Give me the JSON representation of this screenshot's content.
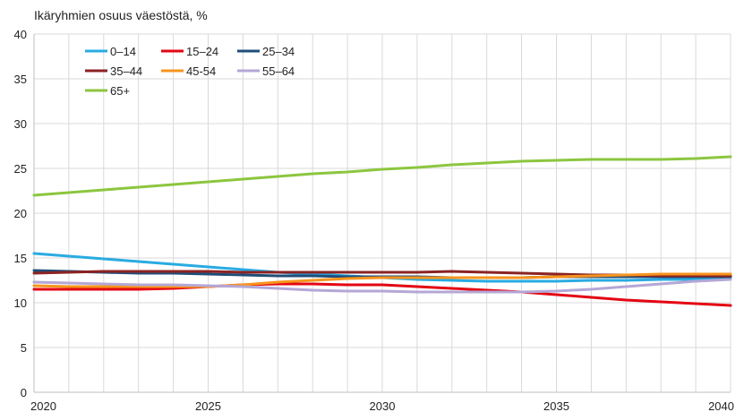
{
  "chart_data": {
    "type": "line",
    "title": "Ikäryhmien osuus väestöstä, %",
    "xlabel": "",
    "ylabel": "",
    "xlim": [
      2020,
      2040
    ],
    "ylim": [
      0,
      40
    ],
    "x_ticks": [
      "2020",
      "2025",
      "2030",
      "2035",
      "2040"
    ],
    "y_ticks": [
      "0",
      "5",
      "10",
      "15",
      "20",
      "25",
      "30",
      "35",
      "40"
    ],
    "grid": true,
    "legend_position": "top-left",
    "x": [
      2020,
      2021,
      2022,
      2023,
      2024,
      2025,
      2026,
      2027,
      2028,
      2029,
      2030,
      2031,
      2032,
      2033,
      2034,
      2035,
      2036,
      2037,
      2038,
      2039,
      2040
    ],
    "series": [
      {
        "name": "0–14",
        "color": "#29abe2",
        "values": [
          15.5,
          15.2,
          14.9,
          14.6,
          14.3,
          14.0,
          13.7,
          13.4,
          13.2,
          13.0,
          12.8,
          12.6,
          12.5,
          12.4,
          12.4,
          12.4,
          12.5,
          12.5,
          12.6,
          12.6,
          12.7
        ]
      },
      {
        "name": "15–24",
        "color": "#e30613",
        "values": [
          11.5,
          11.5,
          11.5,
          11.5,
          11.6,
          11.8,
          12.0,
          12.1,
          12.1,
          12.0,
          12.0,
          11.8,
          11.6,
          11.4,
          11.2,
          10.9,
          10.6,
          10.3,
          10.1,
          9.9,
          9.7
        ]
      },
      {
        "name": "25–34",
        "color": "#1f4e79",
        "values": [
          13.6,
          13.5,
          13.4,
          13.3,
          13.3,
          13.2,
          13.1,
          13.0,
          13.0,
          12.9,
          12.9,
          12.9,
          12.8,
          12.8,
          12.8,
          12.9,
          12.9,
          12.9,
          12.9,
          12.9,
          12.9
        ]
      },
      {
        "name": "35–44",
        "color": "#8b2323",
        "values": [
          13.3,
          13.4,
          13.5,
          13.5,
          13.5,
          13.5,
          13.4,
          13.4,
          13.4,
          13.4,
          13.4,
          13.4,
          13.5,
          13.4,
          13.3,
          13.2,
          13.1,
          13.1,
          13.0,
          13.0,
          13.0
        ]
      },
      {
        "name": "45-54",
        "color": "#f7941d",
        "values": [
          11.9,
          11.8,
          11.8,
          11.8,
          11.8,
          11.8,
          12.0,
          12.3,
          12.5,
          12.7,
          12.8,
          12.8,
          12.8,
          12.8,
          12.8,
          12.9,
          13.0,
          13.1,
          13.2,
          13.2,
          13.2
        ]
      },
      {
        "name": "55–64",
        "color": "#b4a7d6",
        "values": [
          12.3,
          12.2,
          12.1,
          12.0,
          12.0,
          11.9,
          11.8,
          11.6,
          11.4,
          11.3,
          11.3,
          11.2,
          11.2,
          11.2,
          11.2,
          11.3,
          11.5,
          11.8,
          12.1,
          12.4,
          12.6
        ]
      },
      {
        "name": "65+",
        "color": "#8cc63f",
        "values": [
          22.0,
          22.3,
          22.6,
          22.9,
          23.2,
          23.5,
          23.8,
          24.1,
          24.4,
          24.6,
          24.9,
          25.1,
          25.4,
          25.6,
          25.8,
          25.9,
          26.0,
          26.0,
          26.0,
          26.1,
          26.3
        ]
      }
    ]
  }
}
